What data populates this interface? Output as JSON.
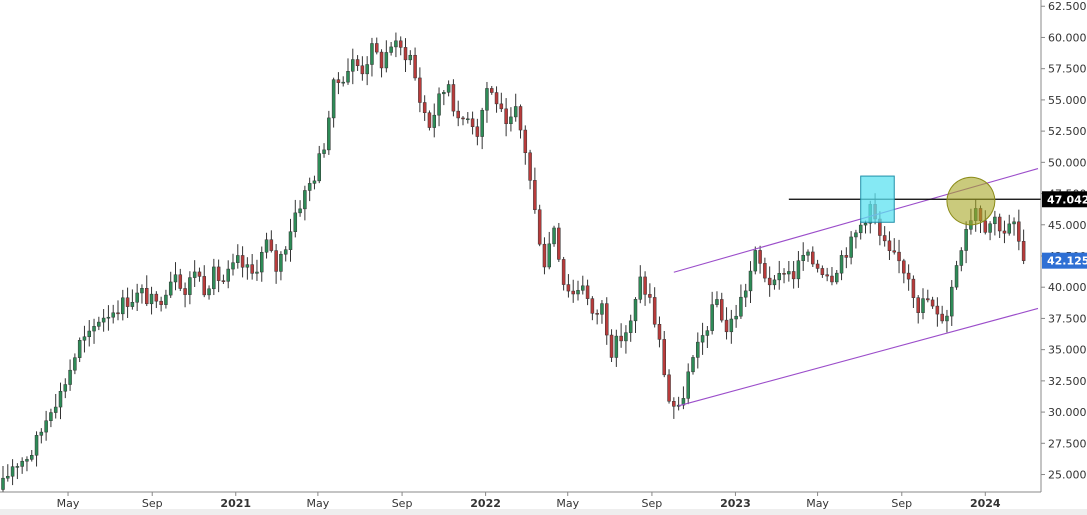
{
  "chart_data": {
    "type": "candlestick",
    "title": "",
    "xlabel": "",
    "ylabel": "",
    "ylim": [
      23.6,
      63.0
    ],
    "xlim": [
      "2020-01-27",
      "2024-03-18"
    ],
    "y_ticks": [
      "25.000",
      "27.500",
      "30.000",
      "32.500",
      "35.000",
      "37.500",
      "40.000",
      "42.500",
      "45.000",
      "47.500",
      "50.000",
      "52.500",
      "55.000",
      "57.500",
      "60.000",
      "62.500"
    ],
    "x_ticks": [
      {
        "label": "May",
        "date": "2020-05-01",
        "year": false
      },
      {
        "label": "Sep",
        "date": "2020-09-01",
        "year": false
      },
      {
        "label": "2021",
        "date": "2021-01-01",
        "year": true
      },
      {
        "label": "May",
        "date": "2021-05-01",
        "year": false
      },
      {
        "label": "Sep",
        "date": "2021-09-01",
        "year": false
      },
      {
        "label": "2022",
        "date": "2022-01-01",
        "year": true
      },
      {
        "label": "May",
        "date": "2022-05-01",
        "year": false
      },
      {
        "label": "Sep",
        "date": "2022-09-01",
        "year": false
      },
      {
        "label": "2023",
        "date": "2023-01-01",
        "year": true
      },
      {
        "label": "May",
        "date": "2023-05-01",
        "year": false
      },
      {
        "label": "Sep",
        "date": "2023-09-01",
        "year": false
      },
      {
        "label": "2024",
        "date": "2024-01-01",
        "year": true
      }
    ],
    "price_tags": [
      {
        "label": "47.042",
        "value": 47.042,
        "color": "#000000"
      },
      {
        "label": "42.125",
        "value": 42.125,
        "color": "#2e6fd4"
      }
    ],
    "series": [
      {
        "kind": "close_path",
        "up_color": "#2e8b57",
        "down_color": "#b83b3b",
        "points": [
          [
            "2020-01-27",
            24.2
          ],
          [
            "2020-02-10",
            25.8
          ],
          [
            "2020-02-24",
            26.2
          ],
          [
            "2020-03-09",
            26.8
          ],
          [
            "2020-03-23",
            28.5
          ],
          [
            "2020-04-06",
            30.5
          ],
          [
            "2020-04-20",
            31.5
          ],
          [
            "2020-05-04",
            33.5
          ],
          [
            "2020-05-18",
            35.5
          ],
          [
            "2020-06-01",
            36.0
          ],
          [
            "2020-06-15",
            37.5
          ],
          [
            "2020-07-06",
            38.2
          ],
          [
            "2020-07-27",
            39.0
          ],
          [
            "2020-08-17",
            39.5
          ],
          [
            "2020-09-07",
            38.5
          ],
          [
            "2020-09-21",
            40.0
          ],
          [
            "2020-10-05",
            41.5
          ],
          [
            "2020-10-19",
            39.5
          ],
          [
            "2020-11-02",
            41.5
          ],
          [
            "2020-11-16",
            40.0
          ],
          [
            "2020-11-30",
            41.0
          ],
          [
            "2020-12-14",
            40.5
          ],
          [
            "2021-01-04",
            42.0
          ],
          [
            "2021-01-25",
            41.0
          ],
          [
            "2021-02-15",
            43.5
          ],
          [
            "2021-03-01",
            41.5
          ],
          [
            "2021-03-15",
            43.5
          ],
          [
            "2021-03-29",
            46.0
          ],
          [
            "2021-04-12",
            47.5
          ],
          [
            "2021-04-26",
            49.0
          ],
          [
            "2021-05-10",
            51.5
          ],
          [
            "2021-05-24",
            56.0
          ],
          [
            "2021-06-07",
            57.0
          ],
          [
            "2021-06-21",
            58.0
          ],
          [
            "2021-07-05",
            57.5
          ],
          [
            "2021-07-19",
            59.0
          ],
          [
            "2021-08-02",
            58.0
          ],
          [
            "2021-08-16",
            59.5
          ],
          [
            "2021-08-30",
            59.0
          ],
          [
            "2021-09-13",
            58.5
          ],
          [
            "2021-09-27",
            55.0
          ],
          [
            "2021-10-11",
            53.0
          ],
          [
            "2021-10-25",
            55.0
          ],
          [
            "2021-11-08",
            56.5
          ],
          [
            "2021-11-22",
            53.0
          ],
          [
            "2021-12-06",
            54.0
          ],
          [
            "2021-12-20",
            52.5
          ],
          [
            "2022-01-03",
            56.0
          ],
          [
            "2022-01-17",
            55.0
          ],
          [
            "2022-01-31",
            52.5
          ],
          [
            "2022-02-14",
            54.0
          ],
          [
            "2022-02-28",
            51.0
          ],
          [
            "2022-03-14",
            46.0
          ],
          [
            "2022-03-28",
            42.0
          ],
          [
            "2022-04-11",
            45.0
          ],
          [
            "2022-04-25",
            40.5
          ],
          [
            "2022-05-09",
            39.5
          ],
          [
            "2022-05-23",
            40.5
          ],
          [
            "2022-06-06",
            37.5
          ],
          [
            "2022-06-20",
            38.5
          ],
          [
            "2022-07-04",
            35.0
          ],
          [
            "2022-07-18",
            36.0
          ],
          [
            "2022-08-01",
            37.0
          ],
          [
            "2022-08-15",
            40.5
          ],
          [
            "2022-08-29",
            39.0
          ],
          [
            "2022-09-12",
            35.5
          ],
          [
            "2022-09-26",
            31.0
          ],
          [
            "2022-10-10",
            30.0
          ],
          [
            "2022-10-24",
            33.0
          ],
          [
            "2022-11-07",
            35.0
          ],
          [
            "2022-11-21",
            37.0
          ],
          [
            "2022-12-05",
            39.0
          ],
          [
            "2022-12-19",
            36.5
          ],
          [
            "2023-01-02",
            38.0
          ],
          [
            "2023-01-16",
            40.0
          ],
          [
            "2023-01-30",
            42.5
          ],
          [
            "2023-02-13",
            41.0
          ],
          [
            "2023-02-27",
            40.0
          ],
          [
            "2023-03-13",
            41.5
          ],
          [
            "2023-03-27",
            41.0
          ],
          [
            "2023-04-10",
            42.5
          ],
          [
            "2023-04-24",
            42.0
          ],
          [
            "2023-05-08",
            41.5
          ],
          [
            "2023-05-22",
            41.0
          ],
          [
            "2023-06-05",
            42.5
          ],
          [
            "2023-06-19",
            43.5
          ],
          [
            "2023-07-03",
            45.0
          ],
          [
            "2023-07-17",
            46.5
          ],
          [
            "2023-07-31",
            44.0
          ],
          [
            "2023-08-14",
            42.5
          ],
          [
            "2023-08-28",
            42.0
          ],
          [
            "2023-09-11",
            41.0
          ],
          [
            "2023-09-25",
            38.5
          ],
          [
            "2023-10-09",
            39.0
          ],
          [
            "2023-10-23",
            37.5
          ],
          [
            "2023-11-06",
            38.0
          ],
          [
            "2023-11-20",
            42.0
          ],
          [
            "2023-12-04",
            45.0
          ],
          [
            "2023-12-18",
            46.5
          ],
          [
            "2024-01-01",
            45.0
          ],
          [
            "2024-01-15",
            45.5
          ],
          [
            "2024-01-29",
            44.5
          ],
          [
            "2024-02-12",
            45.0
          ],
          [
            "2024-02-26",
            42.125
          ]
        ]
      },
      {
        "kind": "line",
        "name": "",
        "color": "#9b4dca",
        "points": [
          [
            "2022-10-03",
            41.2
          ],
          [
            "2024-03-18",
            49.5
          ]
        ]
      },
      {
        "kind": "line",
        "name": "",
        "color": "#9b4dca",
        "points": [
          [
            "2022-10-10",
            30.5
          ],
          [
            "2024-03-18",
            38.3
          ]
        ]
      },
      {
        "kind": "hline",
        "name": "",
        "color": "#000000",
        "value": 47.042,
        "from": "2023-03-20"
      }
    ],
    "annotations": [
      {
        "kind": "rectangle",
        "color": "#5ce1f0",
        "x": [
          "2023-07-03",
          "2023-08-21"
        ],
        "y": [
          45.2,
          48.9
        ]
      },
      {
        "kind": "ellipse",
        "color": "#a6a624",
        "center": [
          "2023-12-11",
          46.9
        ],
        "radii": [
          "5 weeks",
          1.9
        ]
      }
    ],
    "grid": false,
    "legend": "none"
  }
}
